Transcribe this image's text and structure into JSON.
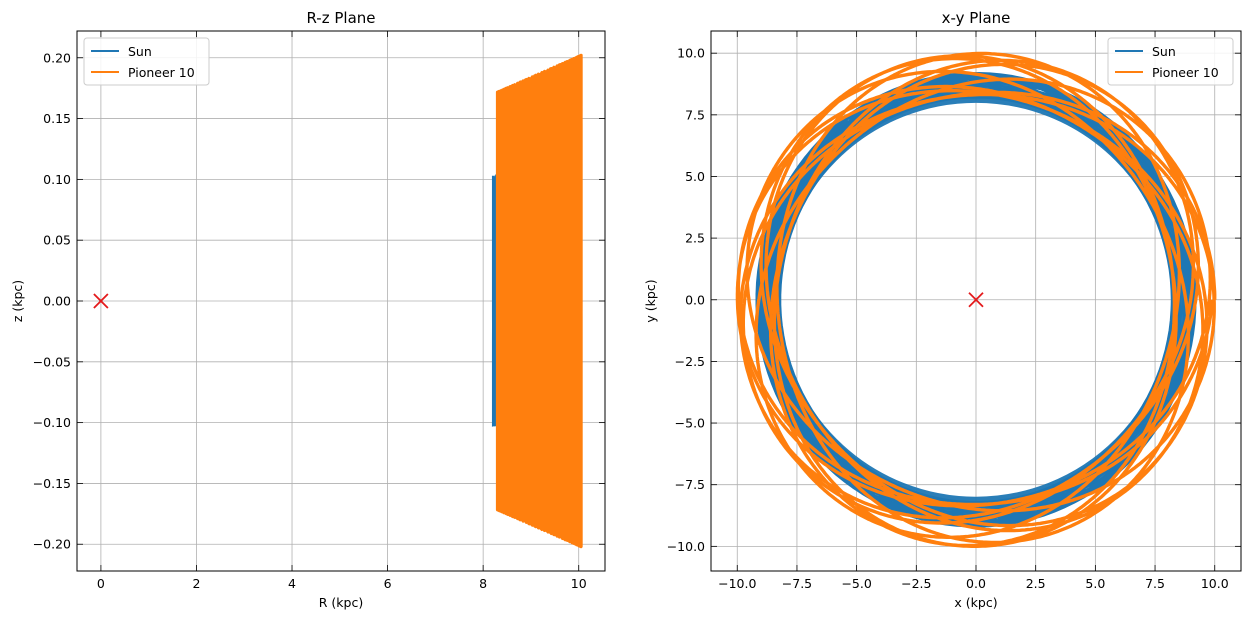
{
  "chart_data": [
    {
      "type": "line",
      "title": "R-z Plane",
      "xlabel": "R (kpc)",
      "ylabel": "z (kpc)",
      "xlim": [
        -0.5,
        10.55
      ],
      "ylim": [
        -0.222,
        0.222
      ],
      "xticks": [
        0,
        2,
        4,
        6,
        8,
        10
      ],
      "xtick_labels": [
        "0",
        "2",
        "4",
        "6",
        "8",
        "10"
      ],
      "yticks": [
        -0.2,
        -0.15,
        -0.1,
        -0.05,
        0.0,
        0.05,
        0.1,
        0.15,
        0.2
      ],
      "ytick_labels": [
        "−0.20",
        "−0.15",
        "−0.10",
        "−0.05",
        "0.00",
        "0.05",
        "0.10",
        "0.15",
        "0.20"
      ],
      "grid": true,
      "legend": "top-left",
      "series": [
        {
          "name": "Sun",
          "color": "#1f77b4",
          "R_range": [
            8.2,
            9.1
          ],
          "z_amplitude": 0.103
        },
        {
          "name": "Pioneer 10",
          "color": "#ff7f0e",
          "R_range": [
            8.3,
            10.05
          ],
          "z_amplitude": 0.202
        }
      ],
      "marker": {
        "symbol": "x",
        "color": "#e41a1c",
        "x": 0,
        "y": 0
      }
    },
    {
      "type": "line",
      "title": "x-y Plane",
      "xlabel": "x (kpc)",
      "ylabel": "y (kpc)",
      "xlim": [
        -11.1,
        11.1
      ],
      "ylim": [
        -11.0,
        10.9
      ],
      "xticks": [
        -10.0,
        -7.5,
        -5.0,
        -2.5,
        0.0,
        2.5,
        5.0,
        7.5,
        10.0
      ],
      "xtick_labels": [
        "−10.0",
        "−7.5",
        "−5.0",
        "−2.5",
        "0.0",
        "2.5",
        "5.0",
        "7.5",
        "10.0"
      ],
      "yticks": [
        -10.0,
        -7.5,
        -5.0,
        -2.5,
        0.0,
        2.5,
        5.0,
        7.5,
        10.0
      ],
      "ytick_labels": [
        "−10.0",
        "−7.5",
        "−5.0",
        "−2.5",
        "0.0",
        "2.5",
        "5.0",
        "7.5",
        "10.0"
      ],
      "grid": true,
      "legend": "top-right",
      "series": [
        {
          "name": "Sun",
          "color": "#1f77b4",
          "r_range": [
            8.2,
            9.2
          ]
        },
        {
          "name": "Pioneer 10",
          "color": "#ff7f0e",
          "r_range": [
            8.3,
            10.0
          ]
        }
      ],
      "marker": {
        "symbol": "x",
        "color": "#e41a1c",
        "x": 0,
        "y": 0
      }
    }
  ]
}
